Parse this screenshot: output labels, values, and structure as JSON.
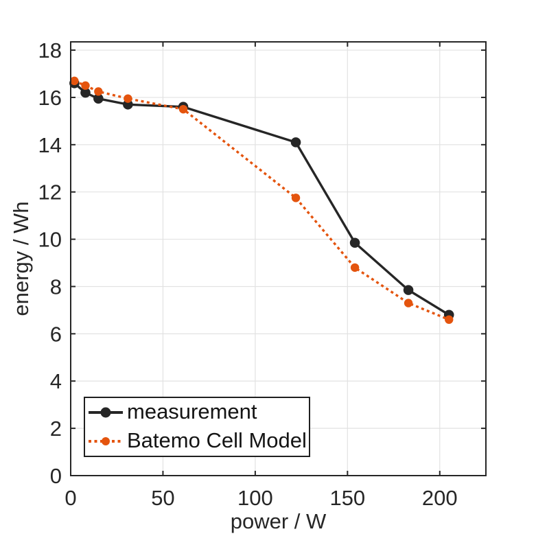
{
  "chart_data": {
    "type": "line",
    "title": "",
    "xlabel": "power / W",
    "ylabel": "energy / Wh",
    "xlim": [
      0,
      225
    ],
    "ylim": [
      0,
      18.35
    ],
    "x_ticks": [
      0,
      50,
      100,
      150,
      200
    ],
    "y_ticks": [
      0,
      2,
      4,
      6,
      8,
      10,
      12,
      14,
      16,
      18
    ],
    "grid": true,
    "legend": {
      "position": "bottom-left",
      "entries": [
        "measurement",
        "Batemo Cell Model"
      ]
    },
    "colors": {
      "axis": "#262626",
      "grid": "#e2e2e2",
      "background": "#ffffff",
      "measurement": "#262626",
      "batemo": "#e4540e"
    },
    "series": [
      {
        "name": "measurement",
        "color": "#262626",
        "line_style": "solid",
        "marker": "circle",
        "x": [
          2,
          8,
          15,
          31,
          61,
          122,
          154,
          183,
          205
        ],
        "y": [
          16.6,
          16.2,
          15.95,
          15.7,
          15.6,
          14.1,
          9.85,
          7.85,
          6.8
        ]
      },
      {
        "name": "Batemo Cell Model",
        "color": "#e4540e",
        "line_style": "dotted",
        "marker": "circle",
        "x": [
          2,
          8,
          15,
          31,
          61,
          122,
          154,
          183,
          205
        ],
        "y": [
          16.7,
          16.5,
          16.25,
          15.95,
          15.5,
          11.75,
          8.8,
          7.3,
          6.6
        ]
      }
    ]
  }
}
